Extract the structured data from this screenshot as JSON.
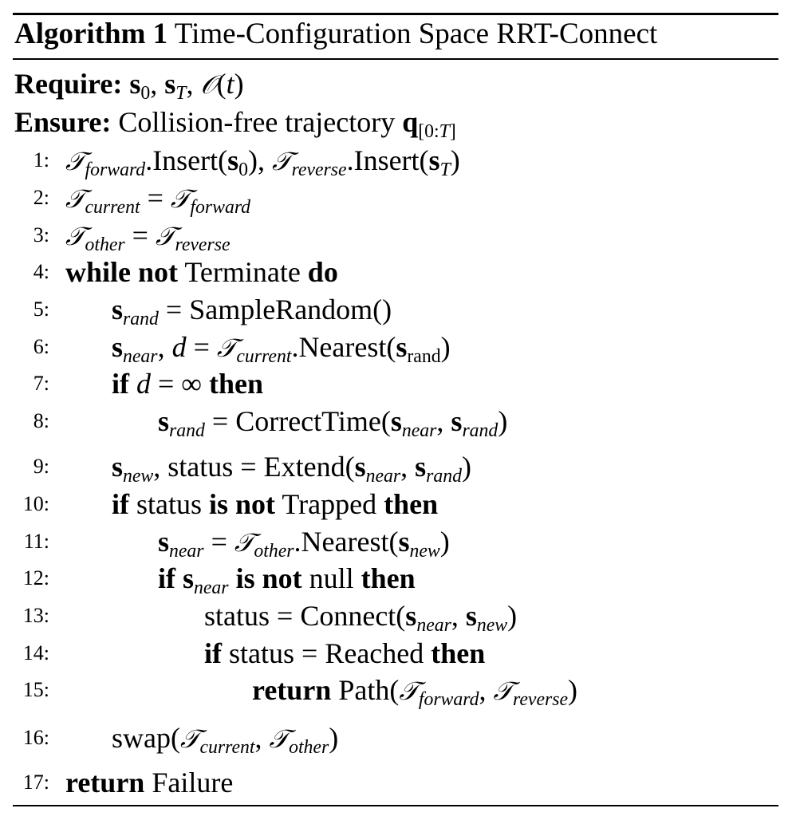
{
  "algorithm": {
    "label": "Algorithm 1",
    "title": "Time-Configuration Space RRT-Connect"
  },
  "require": {
    "keyword": "Require:",
    "text": "s₀, s_T, 𝒪(t)"
  },
  "ensure": {
    "keyword": "Ensure:",
    "text": "Collision-free trajectory q[0:T]"
  },
  "lines": [
    {
      "num": "1:",
      "text": "𝒯forward.Insert(s0), 𝒯reverse.Insert(sT)"
    },
    {
      "num": "2:",
      "text": "𝒯current = 𝒯forward"
    },
    {
      "num": "3:",
      "text": "𝒯other = 𝒯reverse"
    },
    {
      "num": "4:",
      "text": "while not Terminate do"
    },
    {
      "num": "5:",
      "text": "srand = SampleRandom()"
    },
    {
      "num": "6:",
      "text": "snear, d = 𝒯current.Nearest(srand)"
    },
    {
      "num": "7:",
      "text": "if d = ∞ then"
    },
    {
      "num": "8:",
      "text": "srand = CorrectTime(snear, srand)"
    },
    {
      "num": "9:",
      "text": "snew, status = Extend(snear, srand)"
    },
    {
      "num": "10:",
      "text": "if status is not Trapped then"
    },
    {
      "num": "11:",
      "text": "snear = 𝒯other.Nearest(snew)"
    },
    {
      "num": "12:",
      "text": "if snear is not null then"
    },
    {
      "num": "13:",
      "text": "status = Connect(snear, snew)"
    },
    {
      "num": "14:",
      "text": "if status = Reached then"
    },
    {
      "num": "15:",
      "text": "return Path(𝒯forward, 𝒯reverse)"
    },
    {
      "num": "16:",
      "text": "swap(𝒯current, 𝒯other)"
    },
    {
      "num": "17:",
      "text": "return Failure"
    }
  ],
  "tokens": {
    "while": "while",
    "not": "not",
    "do": "do",
    "if": "if",
    "then": "then",
    "is": "is",
    "return": "return",
    "terminate": "Terminate",
    "sample_random": "SampleRandom()",
    "nearest": ".Nearest(",
    "insert": ".Insert(",
    "correct_time": "CorrectTime(",
    "extend": "Extend(",
    "trapped": "Trapped",
    "null": "null",
    "connect": "Connect(",
    "reached": "Reached",
    "path": "Path(",
    "swap": "swap(",
    "failure": "Failure",
    "status": "status",
    "collision_free": "Collision-free trajectory"
  }
}
